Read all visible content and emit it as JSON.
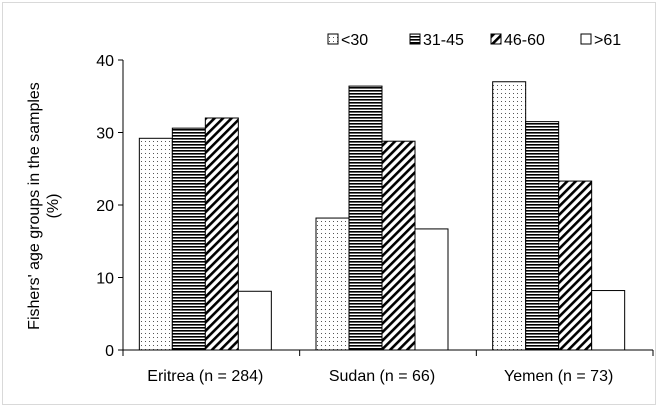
{
  "chart_data": {
    "type": "bar",
    "title": "",
    "xlabel": "",
    "ylabel_lines": [
      "Fishers' age groups in the samples",
      "(%)"
    ],
    "categories": [
      "Eritrea (n = 284)",
      "Sudan (n = 66)",
      "Yemen (n = 73)"
    ],
    "ylim": [
      0,
      40
    ],
    "yticks": [
      0,
      10,
      20,
      30,
      40
    ],
    "grid": false,
    "legend_position": "top-right",
    "series": [
      {
        "name": "<30",
        "pattern": "dots",
        "values": [
          29.2,
          18.2,
          37.0
        ]
      },
      {
        "name": "31-45",
        "pattern": "horizontal",
        "values": [
          30.6,
          36.4,
          31.5
        ]
      },
      {
        "name": "46-60",
        "pattern": "diagonal",
        "values": [
          32.0,
          28.8,
          23.3
        ]
      },
      {
        "name": ">61",
        "pattern": "solid-white",
        "values": [
          8.1,
          16.7,
          8.2
        ]
      }
    ]
  }
}
